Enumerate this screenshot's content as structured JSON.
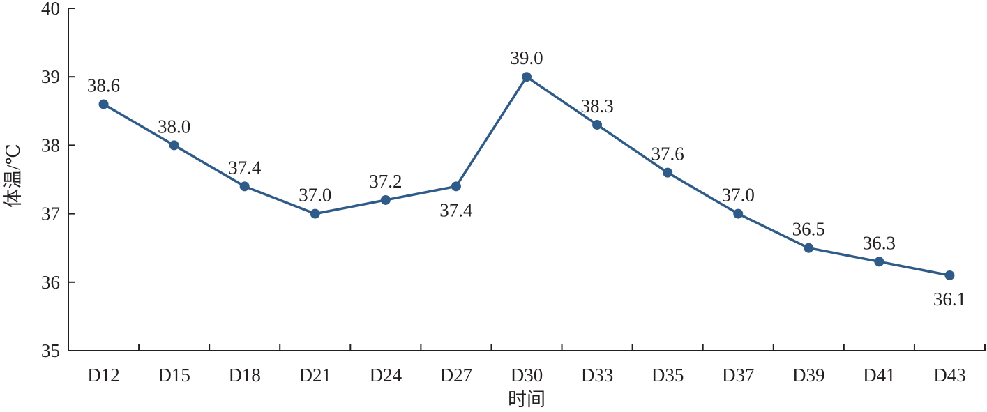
{
  "chart_data": {
    "type": "line",
    "xlabel": "时间",
    "ylabel": "体温/℃",
    "categories": [
      "D12",
      "D15",
      "D18",
      "D21",
      "D24",
      "D27",
      "D30",
      "D33",
      "D35",
      "D37",
      "D39",
      "D41",
      "D43"
    ],
    "series": [
      {
        "values": [
          38.6,
          38.0,
          37.4,
          37.0,
          37.2,
          37.4,
          39.0,
          38.3,
          37.6,
          37.0,
          36.5,
          36.3,
          36.1
        ],
        "labels": [
          "38.6",
          "38.0",
          "37.4",
          "37.0",
          "37.2",
          "37.4",
          "39.0",
          "38.3",
          "37.6",
          "37.0",
          "36.5",
          "36.3",
          "36.1"
        ],
        "label_position": [
          "above",
          "above",
          "above",
          "above",
          "above",
          "below",
          "above",
          "above",
          "above",
          "above",
          "above",
          "above",
          "below"
        ]
      }
    ],
    "ylim": [
      35,
      40
    ],
    "yticks": [
      "35",
      "36",
      "37",
      "38",
      "39",
      "40"
    ],
    "grid": false,
    "legend": "none",
    "colors": {
      "line": "#2e5b87",
      "marker": "#2e5b87",
      "axis": "#231f20"
    },
    "marker": "circle-filled"
  }
}
